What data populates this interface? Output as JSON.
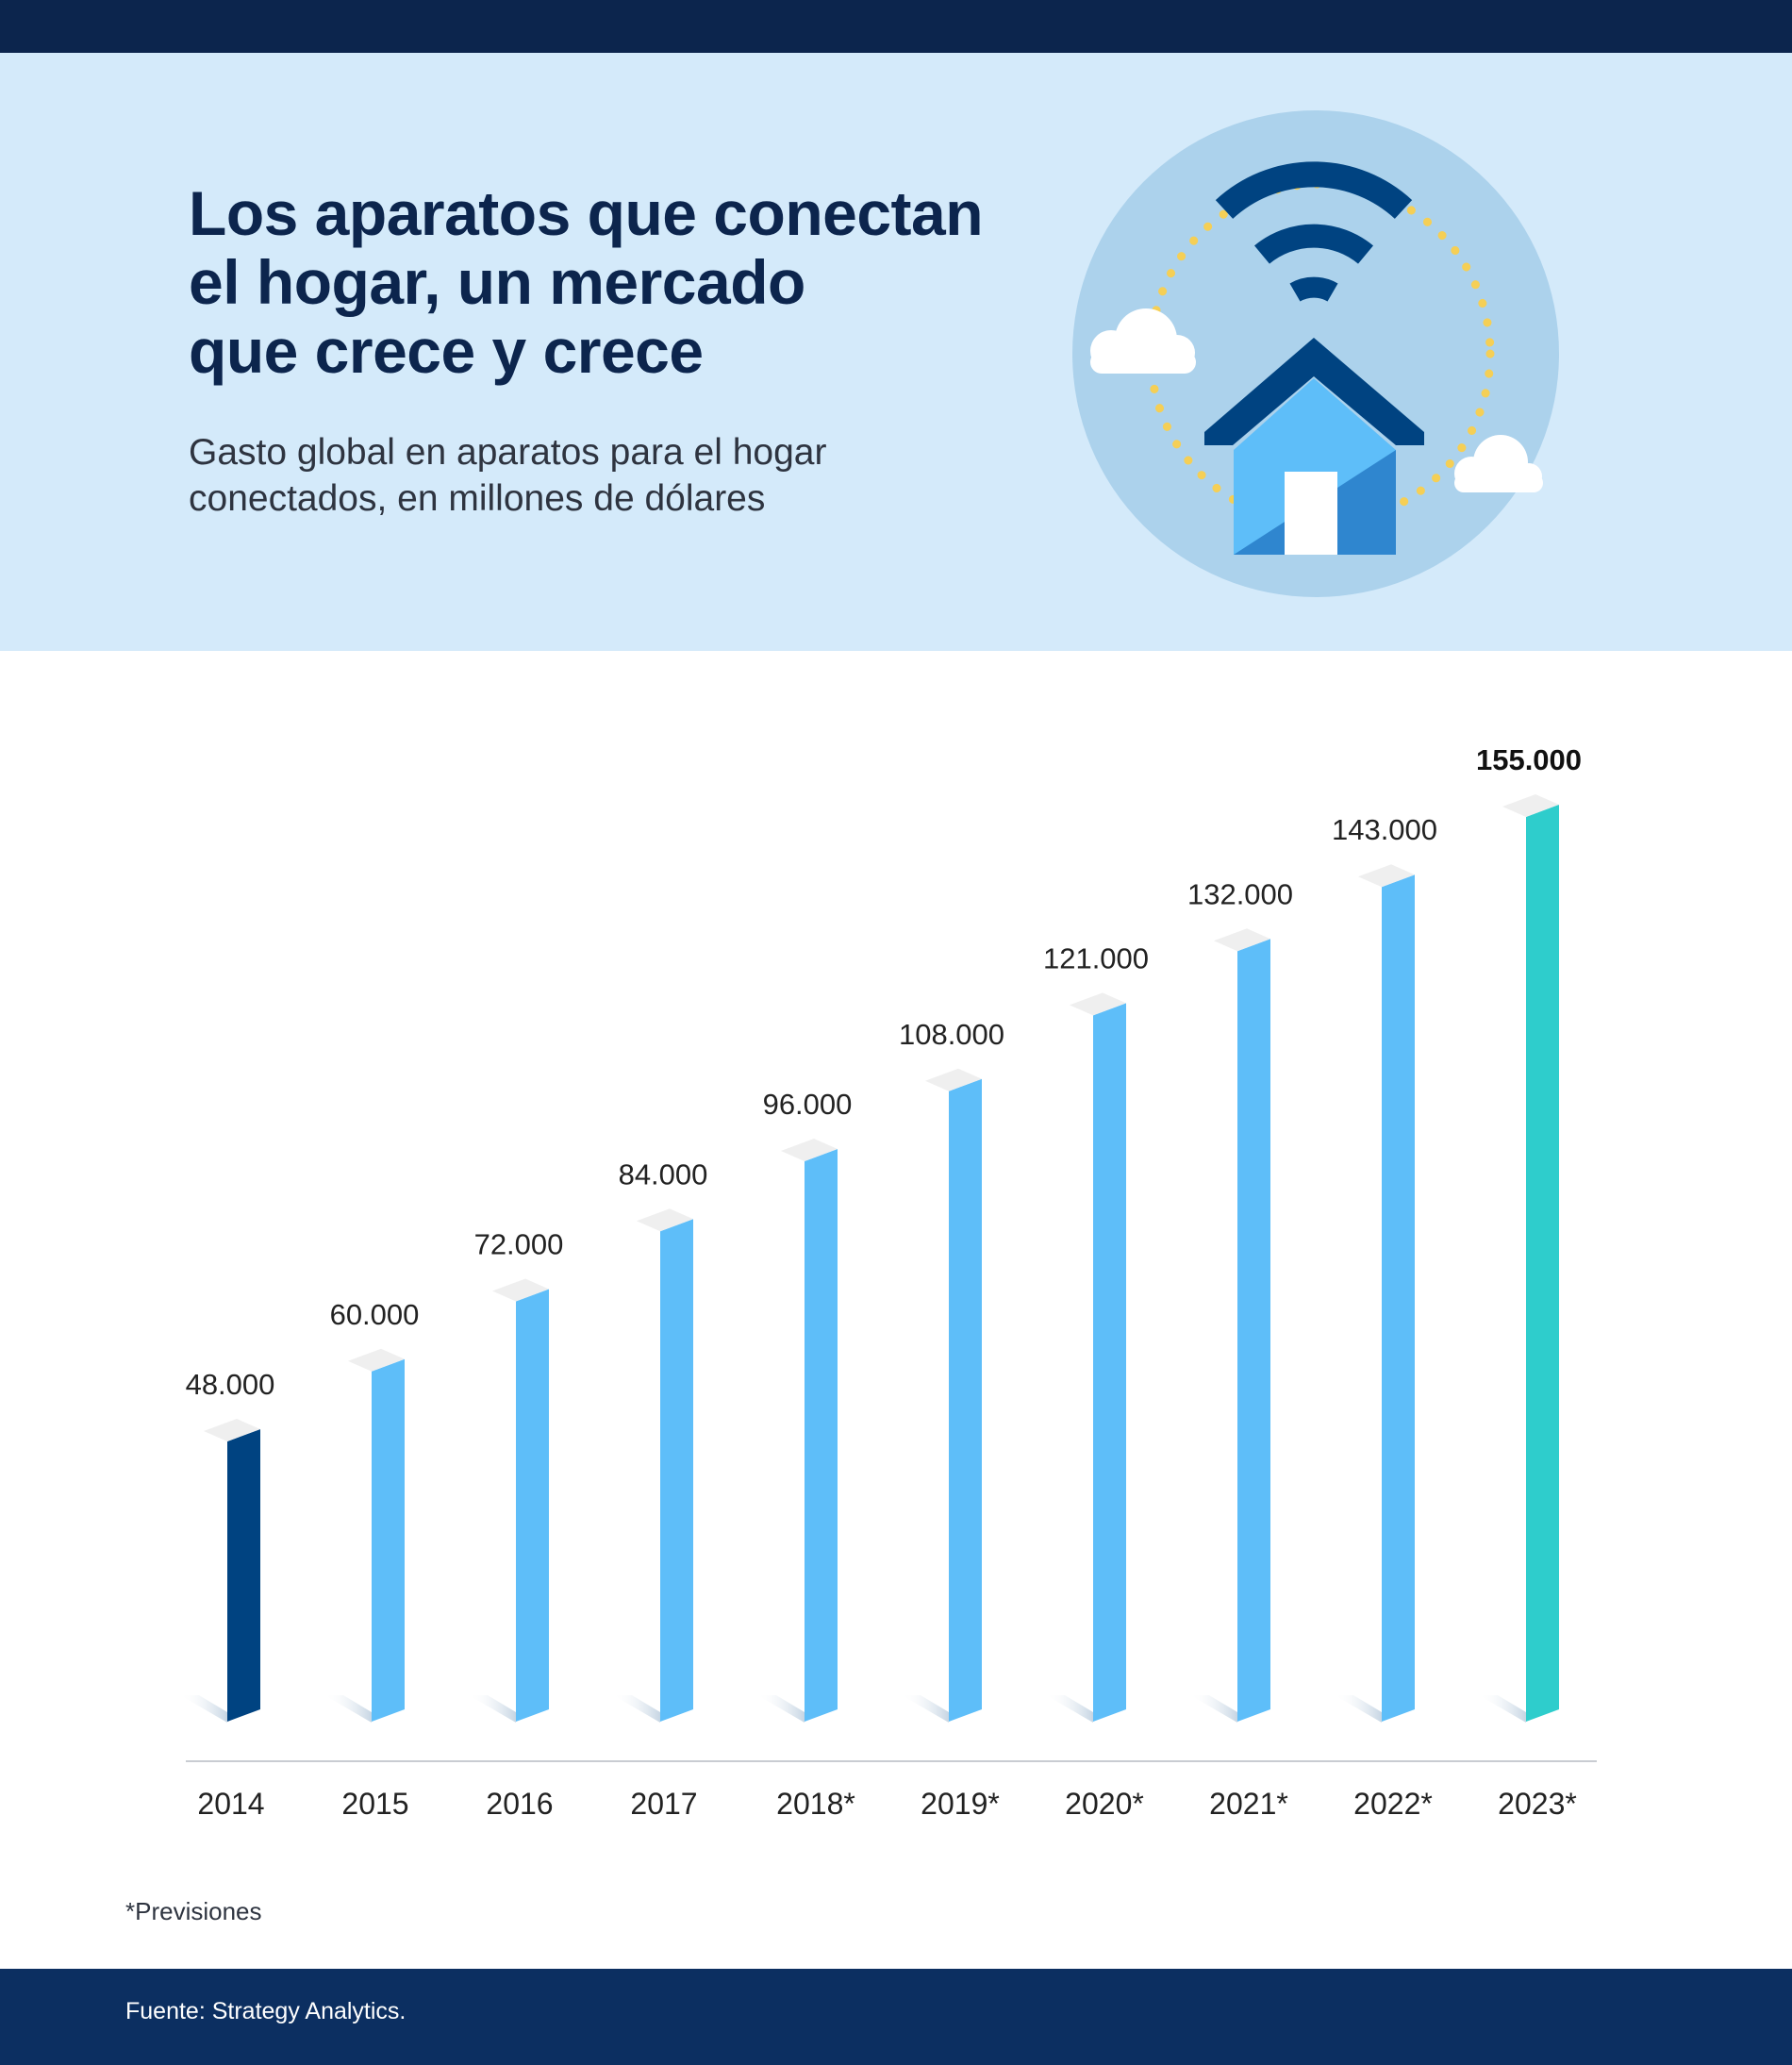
{
  "header": {
    "title_lines": [
      "Los aparatos que conectan",
      "el hogar, un mercado",
      "que crece y crece"
    ],
    "subtitle_lines": [
      "Gasto global en aparatos para el hogar",
      "conectados, en millones de dólares"
    ]
  },
  "illustration": {
    "icon": "smart-home-wifi-icon"
  },
  "chart_data": {
    "type": "bar",
    "title": "Los aparatos que conectan el hogar, un mercado que crece y crece",
    "subtitle": "Gasto global en aparatos para el hogar conectados, en millones de dólares",
    "xlabel": "",
    "ylabel": "",
    "ylim": [
      0,
      160000
    ],
    "grid": false,
    "categories": [
      "2014",
      "2015",
      "2016",
      "2017",
      "2018*",
      "2019*",
      "2020*",
      "2021*",
      "2022*",
      "2023*"
    ],
    "values": [
      48000,
      60000,
      72000,
      84000,
      96000,
      108000,
      121000,
      132000,
      143000,
      155000
    ],
    "value_labels": [
      "48.000",
      "60.000",
      "72.000",
      "84.000",
      "96.000",
      "108.000",
      "121.000",
      "132.000",
      "143.000",
      "155.000"
    ],
    "highlight_label_index": 9
  },
  "colors": {
    "first_bar": "#004381",
    "bar": "#5ebef9",
    "last_bar": "#2ecdcc",
    "navy": "#0c254d",
    "header_bg": "#d4eafa"
  },
  "footnote": "*Previsiones",
  "source": "Fuente: Strategy Analytics."
}
